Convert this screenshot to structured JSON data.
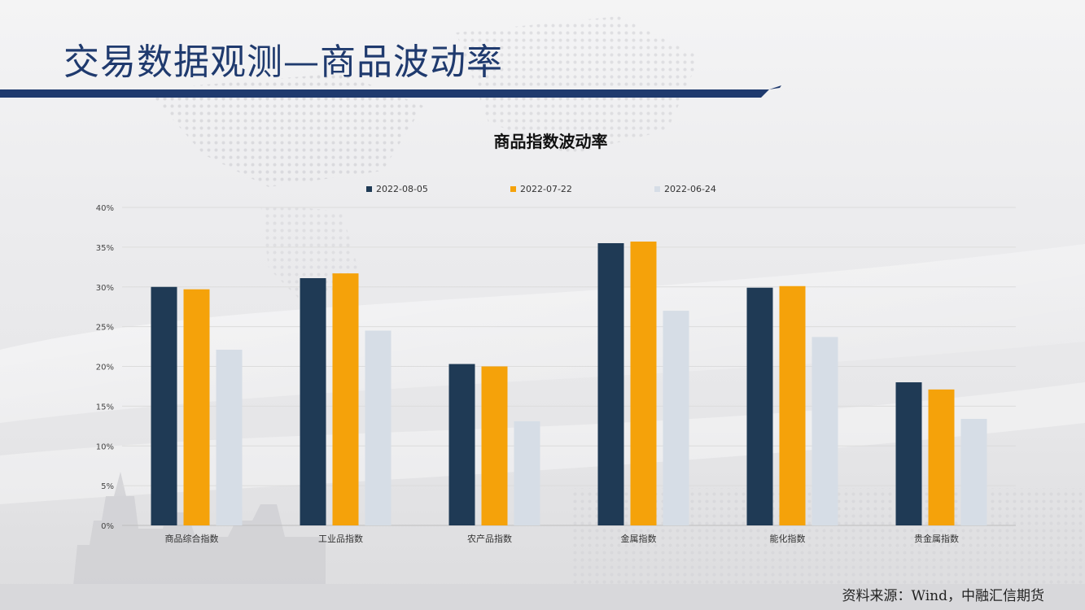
{
  "header": {
    "title": "交易数据观测—商品波动率"
  },
  "footer": {
    "source": "资料来源：Wind，中融汇信期货"
  },
  "colors": {
    "title_text": "#1f3a6e",
    "band": "#1f3a6e",
    "series": [
      "#1f3a55",
      "#f5a20a",
      "#d6dde6"
    ]
  },
  "chart_data": {
    "type": "bar",
    "title": "商品指数波动率",
    "xlabel": "",
    "ylabel": "",
    "categories": [
      "商品综合指数",
      "工业品指数",
      "农产品指数",
      "金属指数",
      "能化指数",
      "贵金属指数"
    ],
    "series": [
      {
        "name": "2022-08-05",
        "values": [
          30.0,
          31.1,
          20.3,
          35.5,
          29.9,
          18.0
        ]
      },
      {
        "name": "2022-07-22",
        "values": [
          29.7,
          31.7,
          20.0,
          35.7,
          30.1,
          17.1
        ]
      },
      {
        "name": "2022-06-24",
        "values": [
          22.1,
          24.5,
          13.1,
          27.0,
          23.7,
          13.4
        ]
      }
    ],
    "ylim": [
      0,
      40
    ],
    "yticks": [
      0,
      5,
      10,
      15,
      20,
      25,
      30,
      35,
      40
    ],
    "ytick_labels": [
      "0%",
      "5%",
      "10%",
      "15%",
      "20%",
      "25%",
      "30%",
      "35%",
      "40%"
    ],
    "grid": true,
    "legend_position": "top"
  }
}
